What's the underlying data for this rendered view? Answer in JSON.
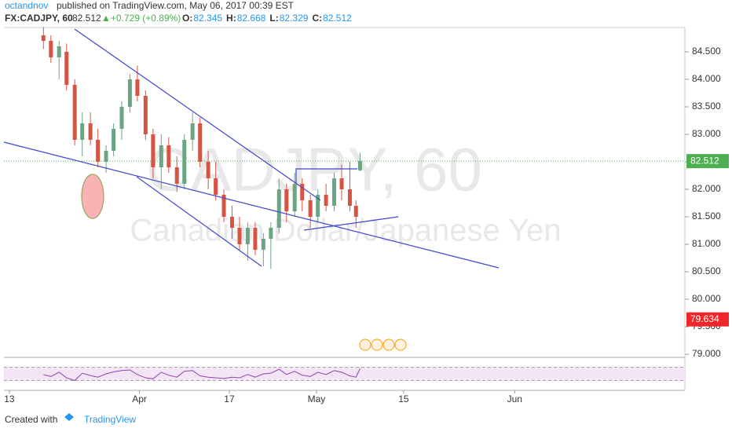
{
  "header": {
    "author": "octandnov",
    "published": "published on TradingView.com, May 06, 2017 00:39 EST",
    "symbol": "FX:CADJPY, 60",
    "last": "82.512",
    "change": "▲+0.729 (+0.89%)",
    "ohlc": [
      {
        "label": "O:",
        "value": "82.345"
      },
      {
        "label": "H:",
        "value": "82.668"
      },
      {
        "label": "L:",
        "value": "82.329"
      },
      {
        "label": "C:",
        "value": "82.512"
      }
    ]
  },
  "chart_data": {
    "type": "candlestick",
    "watermark": "CADJPY, 60",
    "watermark_subtitle": "Canadian Dollar/Japanese Yen",
    "x": [
      5.8,
      6.9,
      8.1,
      9.2,
      10.4,
      11.5,
      12.7,
      13.8,
      15.0,
      16.1,
      17.3,
      18.5,
      19.6,
      20.8,
      21.9,
      23.1,
      24.2,
      25.4,
      26.5,
      27.7,
      28.8,
      30.0,
      31.1,
      32.3,
      33.5,
      34.6,
      35.8,
      36.9,
      38.1,
      39.2,
      40.4,
      41.5,
      42.7,
      43.8,
      45.0,
      46.1,
      47.3,
      48.5,
      49.6,
      50.8,
      51.7,
      52.3
    ],
    "open": [
      84.8,
      84.7,
      84.4,
      84.5,
      83.9,
      82.9,
      83.2,
      82.9,
      82.5,
      82.7,
      83.1,
      83.5,
      84.0,
      83.7,
      83.0,
      82.4,
      82.8,
      82.4,
      82.1,
      82.9,
      83.2,
      82.5,
      82.2,
      81.9,
      81.5,
      81.3,
      81.0,
      81.3,
      80.9,
      81.1,
      81.3,
      82.0,
      81.6,
      82.1,
      81.8,
      81.5,
      81.9,
      81.7,
      82.2,
      82.0,
      81.7,
      82.345
    ],
    "high": [
      84.95,
      84.8,
      84.7,
      84.65,
      84.0,
      83.4,
      83.4,
      83.1,
      82.8,
      83.2,
      83.6,
      84.1,
      84.25,
      83.8,
      83.1,
      83.0,
      82.95,
      82.6,
      83.0,
      83.4,
      83.3,
      82.7,
      82.5,
      82.0,
      81.7,
      81.5,
      81.4,
      81.4,
      81.2,
      81.4,
      82.2,
      82.1,
      82.3,
      82.2,
      81.9,
      82.0,
      82.1,
      82.3,
      82.45,
      82.5,
      81.8,
      82.668
    ],
    "low": [
      84.55,
      84.3,
      84.0,
      83.8,
      82.8,
      82.6,
      82.8,
      82.4,
      82.3,
      82.6,
      82.9,
      83.4,
      83.6,
      82.9,
      82.2,
      82.0,
      82.3,
      81.95,
      82.0,
      82.7,
      82.4,
      82.0,
      81.8,
      81.4,
      81.1,
      80.9,
      80.7,
      80.8,
      80.6,
      80.55,
      81.2,
      81.4,
      81.5,
      81.6,
      81.3,
      81.4,
      81.6,
      81.6,
      81.8,
      81.6,
      81.3,
      82.329
    ],
    "close": [
      84.7,
      84.4,
      84.6,
      83.9,
      82.9,
      83.2,
      82.9,
      82.5,
      82.7,
      83.1,
      83.5,
      84.0,
      83.7,
      83.0,
      82.4,
      82.8,
      82.4,
      82.1,
      82.9,
      83.2,
      82.5,
      82.2,
      81.9,
      81.5,
      81.3,
      81.0,
      81.3,
      80.9,
      81.1,
      81.3,
      82.0,
      81.6,
      82.1,
      81.8,
      81.5,
      81.9,
      81.7,
      82.2,
      82.0,
      81.7,
      81.5,
      82.512
    ],
    "up_color": "#6ba583",
    "down_color": "#d75442",
    "rsi": {
      "values": [
        48,
        42,
        55,
        38,
        30,
        52,
        45,
        40,
        50,
        56,
        60,
        62,
        48,
        38,
        35,
        55,
        46,
        40,
        58,
        60,
        44,
        40,
        38,
        36,
        40,
        38,
        48,
        40,
        50,
        52,
        64,
        48,
        58,
        46,
        42,
        55,
        48,
        60,
        55,
        44,
        40,
        66
      ],
      "color": "#8e44ad",
      "ylim": [
        0,
        100
      ],
      "band": [
        30,
        70
      ]
    },
    "xlim": [
      0,
      100
    ],
    "xticks": [
      {
        "value": 0.8,
        "label": "13"
      },
      {
        "value": 19.9,
        "label": "Apr"
      },
      {
        "value": 33.1,
        "label": "17"
      },
      {
        "value": 45.9,
        "label": "May"
      },
      {
        "value": 58.7,
        "label": "15"
      },
      {
        "value": 75.0,
        "label": "Jun"
      }
    ],
    "ylim": [
      78.943,
      84.943
    ],
    "yticks": [
      {
        "value": 79.0,
        "label": "79.000"
      },
      {
        "value": 79.5,
        "label": "79.500"
      },
      {
        "value": 80.0,
        "label": "80.000"
      },
      {
        "value": 80.5,
        "label": "80.500"
      },
      {
        "value": 81.0,
        "label": "81.000"
      },
      {
        "value": 81.5,
        "label": "81.500"
      },
      {
        "value": 82.0,
        "label": "82.000"
      },
      {
        "value": 82.5,
        "label": "82.500"
      },
      {
        "value": 83.0,
        "label": "83.000"
      },
      {
        "value": 83.5,
        "label": "83.500"
      },
      {
        "value": 84.0,
        "label": "84.000"
      },
      {
        "value": 84.5,
        "label": "84.500"
      }
    ],
    "last_price": 82.512,
    "last_color": "#4caf50",
    "marker_price": 79.634,
    "marker_color": "#f0262a"
  },
  "footer": {
    "created": "Created with",
    "brand": "TradingView"
  }
}
